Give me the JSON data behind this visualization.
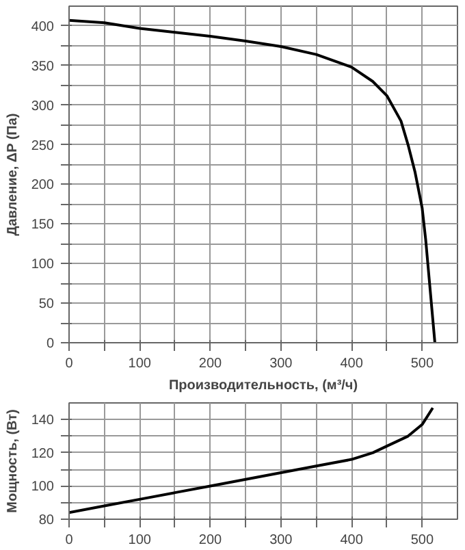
{
  "chart_data": [
    {
      "type": "line",
      "xlabel": "Производительность, (м³/ч)",
      "ylabel": "Давление, ΔP (Па)",
      "xlim": [
        0,
        550
      ],
      "ylim": [
        0,
        425
      ],
      "xticks": [
        0,
        {
          "value": 50,
          "label": null
        },
        100,
        {
          "value": 150,
          "label": null
        },
        200,
        {
          "value": 250,
          "label": null
        },
        300,
        {
          "value": 350,
          "label": null
        },
        400,
        {
          "value": 450,
          "label": null
        },
        500
      ],
      "yticks": [
        0,
        {
          "value": 25,
          "label": null
        },
        50,
        {
          "value": 75,
          "label": null
        },
        100,
        {
          "value": 125,
          "label": null
        },
        150,
        {
          "value": 175,
          "label": null
        },
        200,
        {
          "value": 225,
          "label": null
        },
        250,
        {
          "value": 275,
          "label": null
        },
        300,
        {
          "value": 325,
          "label": null
        },
        350,
        {
          "value": 375,
          "label": null
        },
        400
      ],
      "grid": true,
      "series": [
        {
          "color": "#000000",
          "x": [
            0,
            50,
            100,
            150,
            200,
            250,
            300,
            350,
            400,
            430,
            450,
            470,
            480,
            490,
            500,
            505,
            510,
            515,
            518
          ],
          "values": [
            407,
            404,
            397,
            392,
            387,
            381,
            374,
            364,
            348,
            330,
            312,
            280,
            250,
            215,
            170,
            130,
            80,
            30,
            0
          ]
        }
      ]
    },
    {
      "type": "line",
      "ylabel": "Мощность, (Вт)",
      "xlim": [
        0,
        550
      ],
      "ylim": [
        80,
        150
      ],
      "xticks": [
        0,
        {
          "value": 50,
          "label": null
        },
        100,
        {
          "value": 150,
          "label": null
        },
        200,
        {
          "value": 250,
          "label": null
        },
        300,
        {
          "value": 350,
          "label": null
        },
        400,
        {
          "value": 450,
          "label": null
        },
        500
      ],
      "yticks": [
        80,
        {
          "value": 90,
          "label": null
        },
        100,
        {
          "value": 110,
          "label": null
        },
        120,
        {
          "value": 130,
          "label": null
        },
        140
      ],
      "grid": true,
      "series": [
        {
          "color": "#000000",
          "x": [
            0,
            50,
            100,
            150,
            200,
            250,
            300,
            350,
            400,
            430,
            450,
            480,
            500,
            515
          ],
          "values": [
            84,
            88,
            92,
            96,
            100,
            104,
            108,
            112,
            116,
            120,
            124,
            130,
            137,
            147
          ]
        }
      ]
    }
  ]
}
